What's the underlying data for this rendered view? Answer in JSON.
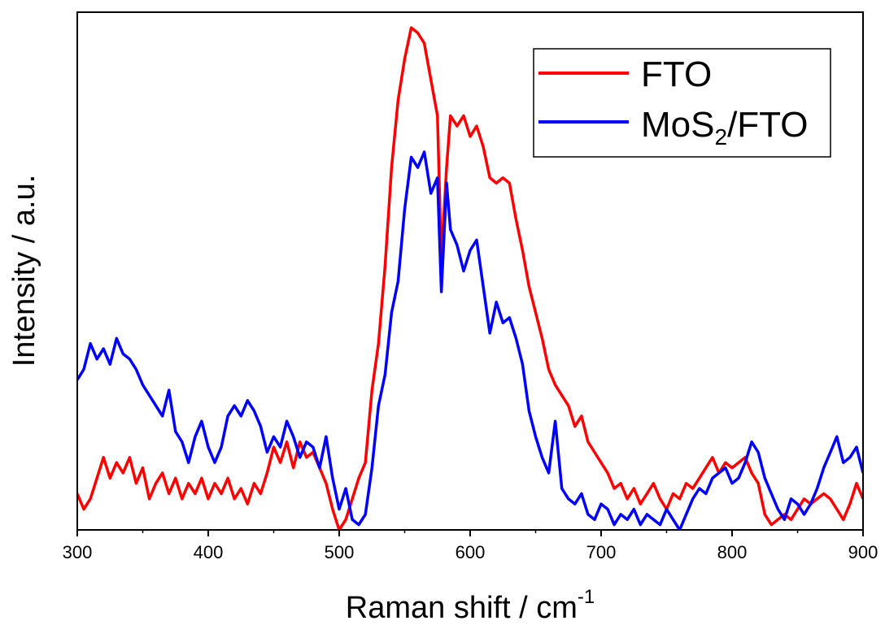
{
  "chart_data": {
    "type": "line",
    "xlabel_main": "Raman shift / cm",
    "xlabel_sup": "-1",
    "ylabel": "Intensity / a.u.",
    "xlim": [
      300,
      900
    ],
    "ylim": [
      0,
      100
    ],
    "x_ticks": [
      300,
      400,
      500,
      600,
      700,
      800,
      900
    ],
    "x_tick_labels": [
      "300",
      "400",
      "500",
      "600",
      "700",
      "800",
      "900"
    ],
    "grid": false,
    "legend_position": "top-right",
    "series": [
      {
        "name": "FTO",
        "color": "#ff0000",
        "points": [
          [
            300,
            7
          ],
          [
            305,
            4
          ],
          [
            310,
            6
          ],
          [
            315,
            10
          ],
          [
            320,
            14
          ],
          [
            325,
            10
          ],
          [
            330,
            13
          ],
          [
            335,
            11
          ],
          [
            340,
            14
          ],
          [
            345,
            9
          ],
          [
            350,
            12
          ],
          [
            355,
            6
          ],
          [
            360,
            9
          ],
          [
            365,
            11
          ],
          [
            370,
            7
          ],
          [
            375,
            10
          ],
          [
            380,
            6
          ],
          [
            385,
            9
          ],
          [
            390,
            7
          ],
          [
            395,
            10
          ],
          [
            400,
            6
          ],
          [
            405,
            9
          ],
          [
            410,
            7
          ],
          [
            415,
            10
          ],
          [
            420,
            6
          ],
          [
            425,
            8
          ],
          [
            430,
            5
          ],
          [
            435,
            9
          ],
          [
            440,
            7
          ],
          [
            445,
            11
          ],
          [
            450,
            16
          ],
          [
            455,
            13
          ],
          [
            460,
            17
          ],
          [
            465,
            12
          ],
          [
            470,
            17
          ],
          [
            475,
            14
          ],
          [
            480,
            15
          ],
          [
            485,
            12
          ],
          [
            490,
            9
          ],
          [
            495,
            4
          ],
          [
            500,
            0
          ],
          [
            505,
            2
          ],
          [
            510,
            6
          ],
          [
            515,
            10
          ],
          [
            520,
            13
          ],
          [
            525,
            27
          ],
          [
            530,
            36
          ],
          [
            535,
            51
          ],
          [
            540,
            70
          ],
          [
            545,
            83
          ],
          [
            550,
            91
          ],
          [
            555,
            97
          ],
          [
            560,
            96
          ],
          [
            565,
            94
          ],
          [
            570,
            87
          ],
          [
            575,
            80
          ],
          [
            578,
            52
          ],
          [
            582,
            70
          ],
          [
            585,
            80
          ],
          [
            590,
            78
          ],
          [
            595,
            80
          ],
          [
            600,
            76
          ],
          [
            605,
            78
          ],
          [
            610,
            74
          ],
          [
            615,
            68
          ],
          [
            620,
            67
          ],
          [
            625,
            68
          ],
          [
            630,
            67
          ],
          [
            635,
            60
          ],
          [
            640,
            54
          ],
          [
            645,
            47
          ],
          [
            650,
            42
          ],
          [
            655,
            37
          ],
          [
            660,
            31
          ],
          [
            665,
            28
          ],
          [
            670,
            26
          ],
          [
            675,
            24
          ],
          [
            680,
            20
          ],
          [
            685,
            22
          ],
          [
            690,
            17
          ],
          [
            695,
            15
          ],
          [
            700,
            13
          ],
          [
            705,
            11
          ],
          [
            710,
            8
          ],
          [
            715,
            9
          ],
          [
            720,
            6
          ],
          [
            725,
            8
          ],
          [
            730,
            5
          ],
          [
            735,
            7
          ],
          [
            740,
            9
          ],
          [
            745,
            6
          ],
          [
            750,
            4
          ],
          [
            755,
            7
          ],
          [
            760,
            6
          ],
          [
            765,
            9
          ],
          [
            770,
            8
          ],
          [
            775,
            10
          ],
          [
            780,
            12
          ],
          [
            785,
            14
          ],
          [
            790,
            11
          ],
          [
            795,
            13
          ],
          [
            800,
            12
          ],
          [
            805,
            13
          ],
          [
            810,
            14
          ],
          [
            815,
            11
          ],
          [
            820,
            9
          ],
          [
            825,
            3
          ],
          [
            830,
            1
          ],
          [
            835,
            2
          ],
          [
            840,
            3
          ],
          [
            845,
            2
          ],
          [
            850,
            4
          ],
          [
            855,
            6
          ],
          [
            860,
            5
          ],
          [
            865,
            6
          ],
          [
            870,
            7
          ],
          [
            875,
            6
          ],
          [
            880,
            4
          ],
          [
            885,
            2
          ],
          [
            890,
            5
          ],
          [
            895,
            9
          ],
          [
            900,
            6
          ]
        ]
      },
      {
        "name": "MoS",
        "name_sub": "2",
        "name_suffix": "/FTO",
        "color": "#0000ff",
        "points": [
          [
            300,
            29
          ],
          [
            305,
            31
          ],
          [
            310,
            36
          ],
          [
            315,
            33
          ],
          [
            320,
            35
          ],
          [
            325,
            32
          ],
          [
            330,
            37
          ],
          [
            335,
            34
          ],
          [
            340,
            33
          ],
          [
            345,
            31
          ],
          [
            350,
            28
          ],
          [
            355,
            26
          ],
          [
            360,
            24
          ],
          [
            365,
            22
          ],
          [
            370,
            27
          ],
          [
            375,
            19
          ],
          [
            380,
            17
          ],
          [
            385,
            13
          ],
          [
            390,
            18
          ],
          [
            395,
            21
          ],
          [
            400,
            16
          ],
          [
            405,
            13
          ],
          [
            410,
            16
          ],
          [
            415,
            22
          ],
          [
            420,
            24
          ],
          [
            425,
            22
          ],
          [
            430,
            25
          ],
          [
            435,
            23
          ],
          [
            440,
            20
          ],
          [
            445,
            15
          ],
          [
            450,
            18
          ],
          [
            455,
            16
          ],
          [
            460,
            21
          ],
          [
            465,
            18
          ],
          [
            470,
            14
          ],
          [
            475,
            17
          ],
          [
            480,
            16
          ],
          [
            485,
            12
          ],
          [
            490,
            18
          ],
          [
            495,
            10
          ],
          [
            500,
            4
          ],
          [
            505,
            8
          ],
          [
            510,
            2
          ],
          [
            515,
            1
          ],
          [
            520,
            3
          ],
          [
            525,
            12
          ],
          [
            530,
            24
          ],
          [
            535,
            30
          ],
          [
            540,
            42
          ],
          [
            545,
            48
          ],
          [
            550,
            62
          ],
          [
            555,
            72
          ],
          [
            560,
            70
          ],
          [
            565,
            73
          ],
          [
            570,
            65
          ],
          [
            575,
            68
          ],
          [
            578,
            46
          ],
          [
            582,
            67
          ],
          [
            585,
            58
          ],
          [
            590,
            55
          ],
          [
            595,
            50
          ],
          [
            600,
            54
          ],
          [
            605,
            56
          ],
          [
            610,
            47
          ],
          [
            615,
            38
          ],
          [
            620,
            44
          ],
          [
            625,
            40
          ],
          [
            630,
            41
          ],
          [
            635,
            37
          ],
          [
            640,
            32
          ],
          [
            645,
            23
          ],
          [
            650,
            18
          ],
          [
            655,
            14
          ],
          [
            660,
            11
          ],
          [
            665,
            21
          ],
          [
            670,
            8
          ],
          [
            675,
            6
          ],
          [
            680,
            5
          ],
          [
            685,
            7
          ],
          [
            690,
            3
          ],
          [
            695,
            2
          ],
          [
            700,
            5
          ],
          [
            705,
            4
          ],
          [
            710,
            1
          ],
          [
            715,
            3
          ],
          [
            720,
            2
          ],
          [
            725,
            4
          ],
          [
            730,
            1
          ],
          [
            735,
            3
          ],
          [
            740,
            2
          ],
          [
            745,
            1
          ],
          [
            750,
            4
          ],
          [
            755,
            2
          ],
          [
            760,
            0
          ],
          [
            765,
            3
          ],
          [
            770,
            6
          ],
          [
            775,
            8
          ],
          [
            780,
            7
          ],
          [
            785,
            10
          ],
          [
            790,
            11
          ],
          [
            795,
            12
          ],
          [
            800,
            9
          ],
          [
            805,
            10
          ],
          [
            810,
            13
          ],
          [
            815,
            17
          ],
          [
            820,
            15
          ],
          [
            825,
            10
          ],
          [
            830,
            7
          ],
          [
            835,
            4
          ],
          [
            840,
            2
          ],
          [
            845,
            6
          ],
          [
            850,
            5
          ],
          [
            855,
            3
          ],
          [
            860,
            5
          ],
          [
            865,
            8
          ],
          [
            870,
            12
          ],
          [
            875,
            15
          ],
          [
            880,
            18
          ],
          [
            885,
            13
          ],
          [
            890,
            14
          ],
          [
            895,
            16
          ],
          [
            900,
            11
          ]
        ]
      }
    ]
  }
}
